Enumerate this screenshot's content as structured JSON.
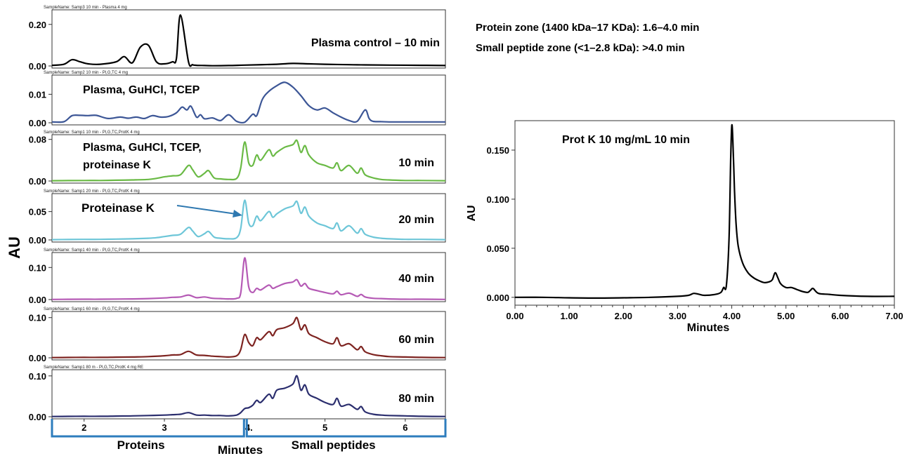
{
  "left_figure": {
    "y_axis_label": "AU",
    "x_axis_label": "Minutes",
    "x_ticks": [
      {
        "label": "2",
        "value": 2
      },
      {
        "label": "3",
        "value": 3
      },
      {
        "label": "4.",
        "value": 4
      },
      {
        "label": "5",
        "value": 5
      },
      {
        "label": "6",
        "value": 6
      }
    ],
    "x_range": [
      1.6,
      6.5
    ],
    "zone_labels": {
      "proteins": "Proteins",
      "small_peptides": "Small peptides"
    },
    "zone_ranges": {
      "proteins": [
        1.6,
        4.0
      ],
      "small_peptides": [
        4.0,
        6.5
      ]
    }
  },
  "zone_notes": {
    "line1": "Protein zone (1400 kDa–17 KDa): 1.6–4.0 min",
    "line2": "Small peptide zone (<1–2.8 kDa): >4.0 min"
  },
  "arrow_label": "Proteinase K",
  "chart_data": [
    {
      "type": "line",
      "sample_name": "SampleName: Samp3 10 min - Plasma 4 mg",
      "label": "Plasma control – 10 min",
      "color": "#000000",
      "ylim": [
        0,
        0.26
      ],
      "yticks": [
        "0.00",
        "0.20"
      ],
      "ytick_values": [
        0,
        0.2
      ],
      "x": [
        1.6,
        1.75,
        1.85,
        1.95,
        2.05,
        2.2,
        2.4,
        2.5,
        2.6,
        2.7,
        2.8,
        2.9,
        3.0,
        3.1,
        3.15,
        3.2,
        3.3,
        3.35,
        3.4,
        3.5,
        3.6,
        3.8,
        4.0,
        4.4,
        4.6,
        4.8,
        5.0,
        5.3,
        5.5,
        5.8,
        6.2,
        6.5
      ],
      "y": [
        0.003,
        0.008,
        0.03,
        0.02,
        0.01,
        0.008,
        0.02,
        0.045,
        0.015,
        0.09,
        0.1,
        0.02,
        0.01,
        0.02,
        0.035,
        0.245,
        0.02,
        0.006,
        0.003,
        0.002,
        0.001,
        0.002,
        0.004,
        0.008,
        0.012,
        0.01,
        0.008,
        0.006,
        0.005,
        0.004,
        0.003,
        0.002
      ]
    },
    {
      "type": "line",
      "sample_name": "SampleName: Samp2 10 min - Pl,G,TC 4 mg",
      "label": "Plasma, GuHCl, TCEP",
      "color": "#3c5696",
      "ylim": [
        0,
        0.016
      ],
      "yticks": [
        "0.00",
        "0.01"
      ],
      "ytick_values": [
        0,
        0.01
      ],
      "x": [
        1.6,
        1.75,
        1.85,
        1.95,
        2.05,
        2.15,
        2.3,
        2.45,
        2.55,
        2.65,
        2.75,
        2.85,
        2.95,
        3.05,
        3.15,
        3.22,
        3.28,
        3.33,
        3.4,
        3.45,
        3.5,
        3.6,
        3.7,
        3.8,
        3.9,
        4.0,
        4.1,
        4.15,
        4.22,
        4.3,
        4.4,
        4.5,
        4.6,
        4.7,
        4.8,
        4.9,
        5.0,
        5.1,
        5.2,
        5.3,
        5.4,
        5.5,
        5.55,
        5.6,
        5.7,
        5.8,
        6.0,
        6.3,
        6.5
      ],
      "y": [
        0.0003,
        0.0004,
        0.0025,
        0.0026,
        0.0025,
        0.0026,
        0.0015,
        0.002,
        0.0016,
        0.002,
        0.0015,
        0.0025,
        0.002,
        0.0022,
        0.0035,
        0.0055,
        0.0045,
        0.0058,
        0.002,
        0.0028,
        0.0014,
        0.0017,
        0.0008,
        0.0028,
        0.0005,
        0.0002,
        0.003,
        0.0025,
        0.0082,
        0.011,
        0.013,
        0.0142,
        0.0125,
        0.0095,
        0.006,
        0.0045,
        0.0052,
        0.0035,
        0.002,
        0.0008,
        0.0005,
        0.0045,
        0.0015,
        0.0005,
        0.0004,
        0.0003,
        0.0003,
        0.0003,
        0.0003
      ]
    },
    {
      "type": "line",
      "sample_name": "SampleName: Samp1 10 min - Pl,G,TC,ProtK 4 mg",
      "label": "10 min",
      "label_extra_1": "Plasma, GuHCl, TCEP,",
      "label_extra_2": "proteinase K",
      "color": "#6aba45",
      "ylim": [
        0,
        0.085
      ],
      "yticks": [
        "0.00",
        "0.08"
      ],
      "ytick_values": [
        0,
        0.08
      ],
      "x": [
        1.6,
        1.8,
        2.0,
        2.2,
        2.4,
        2.6,
        2.8,
        2.9,
        3.0,
        3.1,
        3.2,
        3.3,
        3.35,
        3.42,
        3.5,
        3.55,
        3.62,
        3.7,
        3.8,
        3.9,
        3.95,
        4.0,
        4.05,
        4.1,
        4.15,
        4.2,
        4.3,
        4.35,
        4.4,
        4.5,
        4.6,
        4.65,
        4.7,
        4.75,
        4.8,
        4.9,
        5.0,
        5.1,
        5.15,
        5.2,
        5.3,
        5.4,
        5.45,
        5.5,
        5.6,
        5.7,
        5.8,
        6.0,
        6.2,
        6.5
      ],
      "y": [
        0.0005,
        0.0008,
        0.001,
        0.001,
        0.0015,
        0.002,
        0.003,
        0.005,
        0.008,
        0.01,
        0.012,
        0.03,
        0.022,
        0.008,
        0.015,
        0.02,
        0.006,
        0.004,
        0.003,
        0.005,
        0.025,
        0.075,
        0.035,
        0.03,
        0.05,
        0.04,
        0.06,
        0.048,
        0.055,
        0.065,
        0.07,
        0.078,
        0.055,
        0.068,
        0.05,
        0.035,
        0.03,
        0.025,
        0.035,
        0.02,
        0.03,
        0.015,
        0.025,
        0.012,
        0.006,
        0.003,
        0.002,
        0.001,
        0.001,
        0.0005
      ]
    },
    {
      "type": "line",
      "sample_name": "SampleName: Samp1 20 min - Pl,G,TC,ProtK 4 mg",
      "label": "20 min",
      "color": "#6dc6d8",
      "ylim": [
        0,
        0.078
      ],
      "yticks": [
        "0.00",
        "0.05"
      ],
      "ytick_values": [
        0,
        0.05
      ],
      "x": [
        1.6,
        1.8,
        2.0,
        2.2,
        2.4,
        2.6,
        2.8,
        2.9,
        3.0,
        3.1,
        3.2,
        3.3,
        3.35,
        3.42,
        3.5,
        3.55,
        3.62,
        3.7,
        3.8,
        3.9,
        3.95,
        4.0,
        4.05,
        4.1,
        4.15,
        4.2,
        4.3,
        4.35,
        4.4,
        4.5,
        4.6,
        4.65,
        4.7,
        4.75,
        4.8,
        4.9,
        5.0,
        5.1,
        5.15,
        5.2,
        5.3,
        5.4,
        5.45,
        5.5,
        5.6,
        5.7,
        5.8,
        6.0,
        6.2,
        6.5
      ],
      "y": [
        0.0005,
        0.0008,
        0.001,
        0.001,
        0.0015,
        0.002,
        0.003,
        0.004,
        0.006,
        0.008,
        0.01,
        0.022,
        0.016,
        0.006,
        0.011,
        0.015,
        0.005,
        0.003,
        0.002,
        0.004,
        0.02,
        0.07,
        0.03,
        0.025,
        0.042,
        0.034,
        0.05,
        0.04,
        0.046,
        0.055,
        0.06,
        0.068,
        0.047,
        0.058,
        0.042,
        0.03,
        0.025,
        0.02,
        0.03,
        0.016,
        0.025,
        0.012,
        0.02,
        0.01,
        0.005,
        0.003,
        0.002,
        0.001,
        0.001,
        0.0005
      ]
    },
    {
      "type": "line",
      "sample_name": "SampleName: Samp1 40 min - Pl,G,TC,ProtK 4 mg",
      "label": "40 min",
      "color": "#b55ab5",
      "ylim": [
        0,
        0.14
      ],
      "yticks": [
        "0.00",
        "0.10"
      ],
      "ytick_values": [
        0,
        0.1
      ],
      "x": [
        1.6,
        1.8,
        2.0,
        2.2,
        2.4,
        2.6,
        2.8,
        3.0,
        3.1,
        3.2,
        3.3,
        3.4,
        3.5,
        3.6,
        3.7,
        3.8,
        3.9,
        3.95,
        4.0,
        4.05,
        4.1,
        4.15,
        4.2,
        4.3,
        4.35,
        4.4,
        4.5,
        4.6,
        4.65,
        4.7,
        4.75,
        4.8,
        4.9,
        5.0,
        5.1,
        5.15,
        5.2,
        5.3,
        5.4,
        5.45,
        5.5,
        5.6,
        5.7,
        5.8,
        6.0,
        6.2,
        6.5
      ],
      "y": [
        0.0005,
        0.0008,
        0.001,
        0.001,
        0.0015,
        0.002,
        0.003,
        0.005,
        0.007,
        0.008,
        0.014,
        0.006,
        0.008,
        0.004,
        0.003,
        0.002,
        0.004,
        0.02,
        0.13,
        0.04,
        0.022,
        0.035,
        0.03,
        0.045,
        0.035,
        0.04,
        0.05,
        0.055,
        0.062,
        0.042,
        0.05,
        0.035,
        0.028,
        0.022,
        0.018,
        0.026,
        0.015,
        0.02,
        0.01,
        0.016,
        0.008,
        0.004,
        0.003,
        0.002,
        0.001,
        0.001,
        0.0005
      ]
    },
    {
      "type": "line",
      "sample_name": "SampleName: Samp1 60 min - Pl,G,TC,ProtK 4 mg",
      "label": "60 min",
      "color": "#7e2421",
      "ylim": [
        0,
        0.11
      ],
      "yticks": [
        "0.00",
        "0.10"
      ],
      "ytick_values": [
        0,
        0.1
      ],
      "x": [
        1.6,
        1.8,
        2.0,
        2.2,
        2.4,
        2.6,
        2.8,
        3.0,
        3.1,
        3.2,
        3.3,
        3.4,
        3.5,
        3.6,
        3.7,
        3.8,
        3.9,
        3.95,
        4.0,
        4.05,
        4.1,
        4.15,
        4.2,
        4.3,
        4.35,
        4.4,
        4.5,
        4.6,
        4.65,
        4.7,
        4.75,
        4.8,
        4.9,
        5.0,
        5.1,
        5.15,
        5.2,
        5.3,
        5.4,
        5.45,
        5.5,
        5.6,
        5.7,
        5.8,
        6.0,
        6.2,
        6.5
      ],
      "y": [
        0.0005,
        0.0008,
        0.001,
        0.001,
        0.0015,
        0.002,
        0.003,
        0.005,
        0.007,
        0.008,
        0.016,
        0.007,
        0.006,
        0.004,
        0.003,
        0.002,
        0.005,
        0.02,
        0.058,
        0.038,
        0.03,
        0.05,
        0.045,
        0.065,
        0.055,
        0.07,
        0.075,
        0.085,
        0.1,
        0.07,
        0.082,
        0.06,
        0.05,
        0.04,
        0.035,
        0.05,
        0.03,
        0.035,
        0.02,
        0.028,
        0.015,
        0.008,
        0.005,
        0.003,
        0.002,
        0.001,
        0.0005
      ]
    },
    {
      "type": "line",
      "sample_name": "SampleName: Samp1 80 m - Pl,G,TC,ProtK 4 mg RE",
      "label": "80 min",
      "color": "#2b2e6e",
      "ylim": [
        0,
        0.11
      ],
      "yticks": [
        "0.00",
        "0.10"
      ],
      "ytick_values": [
        0,
        0.1
      ],
      "x": [
        1.6,
        1.8,
        2.0,
        2.2,
        2.4,
        2.6,
        2.8,
        3.0,
        3.1,
        3.2,
        3.3,
        3.4,
        3.5,
        3.6,
        3.7,
        3.8,
        3.9,
        3.95,
        4.0,
        4.05,
        4.1,
        4.15,
        4.2,
        4.3,
        4.35,
        4.4,
        4.5,
        4.6,
        4.65,
        4.7,
        4.75,
        4.8,
        4.9,
        5.0,
        5.1,
        5.15,
        5.2,
        5.3,
        5.4,
        5.45,
        5.5,
        5.6,
        5.7,
        5.8,
        6.0,
        6.2,
        6.5
      ],
      "y": [
        0.0005,
        0.0008,
        0.001,
        0.001,
        0.0015,
        0.002,
        0.003,
        0.004,
        0.005,
        0.006,
        0.01,
        0.004,
        0.004,
        0.003,
        0.003,
        0.002,
        0.004,
        0.01,
        0.02,
        0.022,
        0.028,
        0.04,
        0.035,
        0.055,
        0.045,
        0.065,
        0.07,
        0.08,
        0.1,
        0.065,
        0.078,
        0.055,
        0.045,
        0.035,
        0.03,
        0.045,
        0.026,
        0.03,
        0.018,
        0.025,
        0.012,
        0.006,
        0.004,
        0.003,
        0.002,
        0.001,
        0.0005
      ]
    },
    {
      "type": "line",
      "title": "Prot K 10 mg/mL 10 min",
      "xlabel": "Minutes",
      "ylabel": "AU",
      "color": "#000000",
      "xlim": [
        0,
        7
      ],
      "ylim": [
        -0.008,
        0.18
      ],
      "xticks": [
        "0.00",
        "1.00",
        "2.00",
        "3.00",
        "4.00",
        "5.00",
        "6.00",
        "7.00"
      ],
      "xtick_values": [
        0,
        1,
        2,
        3,
        4,
        5,
        6,
        7
      ],
      "yticks": [
        "0.000",
        "0.050",
        "0.100",
        "0.150"
      ],
      "ytick_values": [
        0,
        0.05,
        0.1,
        0.15
      ],
      "x": [
        0.0,
        0.5,
        1.0,
        1.5,
        2.0,
        2.5,
        3.0,
        3.2,
        3.3,
        3.4,
        3.5,
        3.7,
        3.8,
        3.85,
        3.9,
        3.95,
        3.98,
        4.0,
        4.02,
        4.05,
        4.08,
        4.12,
        4.2,
        4.3,
        4.4,
        4.5,
        4.6,
        4.7,
        4.75,
        4.8,
        4.85,
        4.9,
        5.0,
        5.1,
        5.2,
        5.3,
        5.4,
        5.45,
        5.5,
        5.6,
        5.8,
        6.0,
        6.5,
        7.0
      ],
      "y": [
        0.0,
        0.0,
        -0.0005,
        -0.0008,
        -0.0005,
        0.0,
        0.001,
        0.002,
        0.004,
        0.003,
        0.002,
        0.003,
        0.005,
        0.01,
        0.012,
        0.06,
        0.14,
        0.175,
        0.16,
        0.11,
        0.075,
        0.052,
        0.035,
        0.025,
        0.02,
        0.017,
        0.015,
        0.016,
        0.018,
        0.025,
        0.02,
        0.014,
        0.01,
        0.01,
        0.008,
        0.006,
        0.005,
        0.007,
        0.009,
        0.004,
        0.003,
        0.002,
        0.001,
        0.001
      ]
    }
  ]
}
